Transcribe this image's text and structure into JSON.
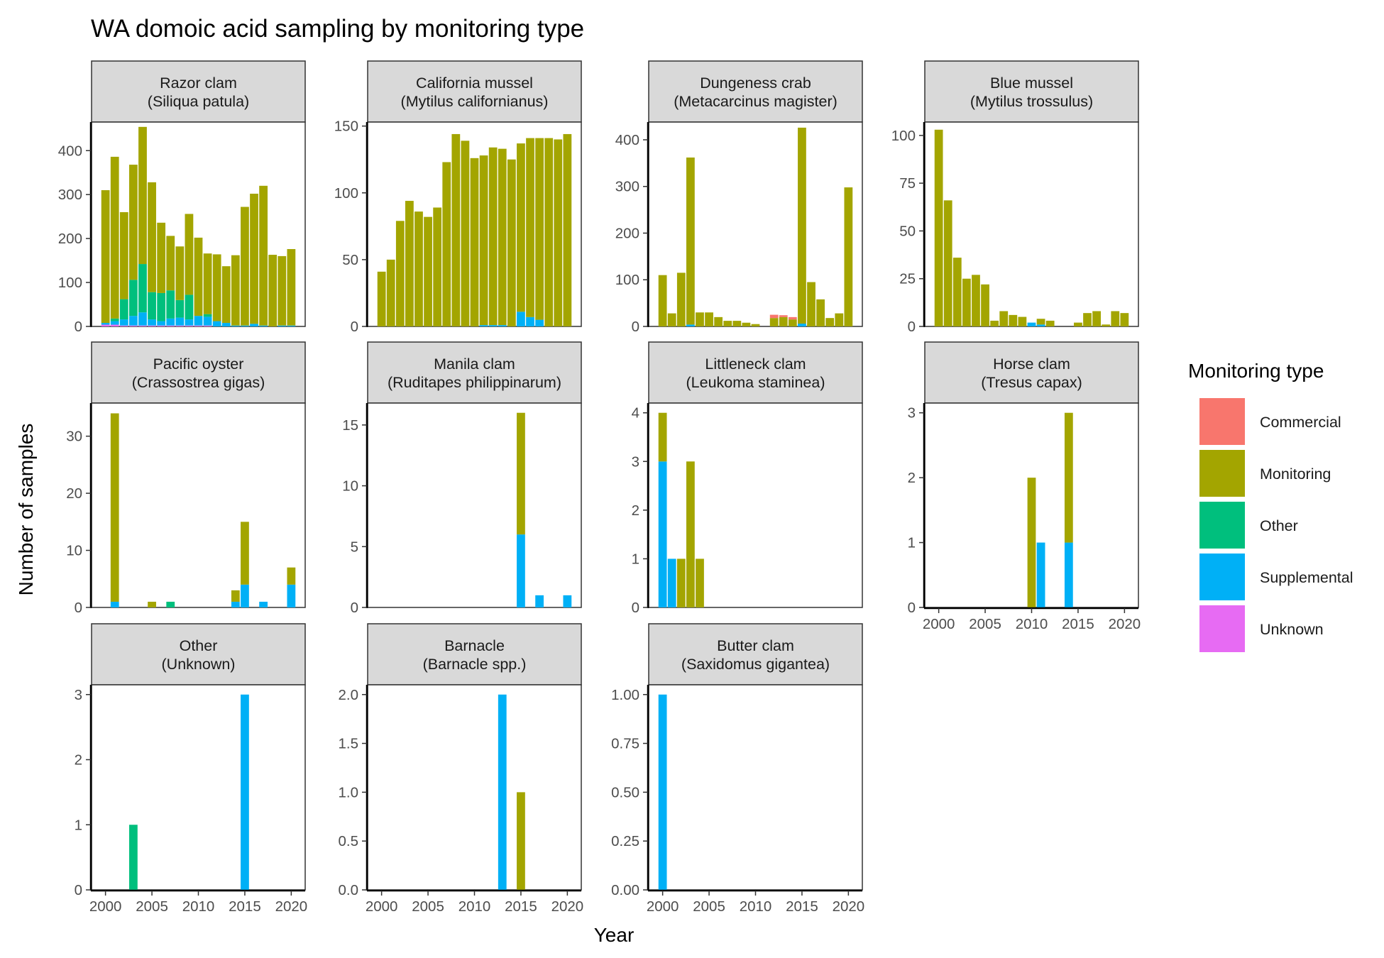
{
  "chart_data": {
    "type": "bar",
    "title": "WA domoic acid sampling by monitoring type",
    "xlabel": "Year",
    "ylabel": "Number of samples",
    "stacked": true,
    "grid": false,
    "legend": {
      "title": "Monitoring type",
      "position": "right",
      "items": [
        {
          "name": "Commercial",
          "color": "#F8766D"
        },
        {
          "name": "Monitoring",
          "color": "#A3A500"
        },
        {
          "name": "Other",
          "color": "#00BF7D"
        },
        {
          "name": "Supplemental",
          "color": "#00B0F6"
        },
        {
          "name": "Unknown",
          "color": "#E76BF3"
        }
      ]
    },
    "x_ticks": [
      2000,
      2005,
      2010,
      2015,
      2020
    ],
    "xlim": [
      1998.5,
      2021.5
    ],
    "panels": [
      {
        "label_line1": "Razor clam",
        "label_line2": "(Siliqua patula)",
        "ylim": [
          0,
          465
        ],
        "y_ticks": [
          "0",
          "100",
          "200",
          "300",
          "400"
        ],
        "y_tick_values": [
          0,
          100,
          200,
          300,
          400
        ],
        "show_x_axis": false,
        "years": [
          2000,
          2001,
          2002,
          2003,
          2004,
          2005,
          2006,
          2007,
          2008,
          2009,
          2010,
          2011,
          2012,
          2013,
          2014,
          2015,
          2016,
          2017,
          2018,
          2019,
          2020
        ],
        "series": {
          "Unknown": [
            4,
            4,
            2,
            2,
            2,
            2,
            2,
            2,
            2,
            2,
            2,
            2,
            0,
            0,
            0,
            0,
            0,
            0,
            0,
            0,
            0
          ],
          "Supplemental": [
            4,
            8,
            14,
            22,
            30,
            14,
            10,
            16,
            18,
            14,
            22,
            20,
            12,
            8,
            2,
            2,
            6,
            2,
            0,
            2,
            2
          ],
          "Other": [
            0,
            6,
            46,
            82,
            110,
            62,
            64,
            64,
            40,
            56,
            0,
            6,
            0,
            0,
            0,
            0,
            0,
            0,
            0,
            0,
            0
          ],
          "Monitoring": [
            302,
            368,
            198,
            262,
            312,
            250,
            160,
            124,
            122,
            184,
            178,
            138,
            152,
            129,
            160,
            270,
            296,
            318,
            163,
            158,
            174
          ],
          "Commercial": [
            0,
            0,
            0,
            0,
            0,
            0,
            0,
            0,
            0,
            0,
            0,
            0,
            0,
            0,
            0,
            0,
            0,
            0,
            0,
            0,
            0
          ]
        }
      },
      {
        "label_line1": "California mussel",
        "label_line2": "(Mytilus californianus)",
        "ylim": [
          0,
          153
        ],
        "y_ticks": [
          "0",
          "50",
          "100",
          "150"
        ],
        "y_tick_values": [
          0,
          50,
          100,
          150
        ],
        "show_x_axis": false,
        "years": [
          2000,
          2001,
          2002,
          2003,
          2004,
          2005,
          2006,
          2007,
          2008,
          2009,
          2010,
          2011,
          2012,
          2013,
          2014,
          2015,
          2016,
          2017,
          2018,
          2019,
          2020
        ],
        "series": {
          "Supplemental": [
            0,
            0,
            0,
            0,
            0,
            0,
            0,
            0,
            0,
            0,
            0,
            1,
            1,
            1,
            0,
            11,
            7,
            5,
            0,
            0,
            0
          ],
          "Monitoring": [
            41,
            50,
            79,
            94,
            86,
            82,
            89,
            123,
            144,
            139,
            126,
            127,
            133,
            132,
            125,
            126,
            134,
            136,
            141,
            140,
            144
          ],
          "Commercial": [
            0,
            0,
            0,
            0,
            0,
            0,
            0,
            0,
            0,
            0,
            0,
            0,
            0,
            0,
            0,
            0,
            0,
            0,
            0,
            0,
            0
          ],
          "Other": [
            0,
            0,
            0,
            0,
            0,
            0,
            0,
            0,
            0,
            0,
            0,
            0,
            0,
            0,
            0,
            0,
            0,
            0,
            0,
            0,
            0
          ],
          "Unknown": [
            0,
            0,
            0,
            0,
            0,
            0,
            0,
            0,
            0,
            0,
            0,
            0,
            0,
            0,
            0,
            0,
            0,
            0,
            0,
            0,
            0
          ]
        }
      },
      {
        "label_line1": "Dungeness crab",
        "label_line2": "(Metacarcinus magister)",
        "ylim": [
          0,
          438
        ],
        "y_ticks": [
          "0",
          "100",
          "200",
          "300",
          "400"
        ],
        "y_tick_values": [
          0,
          100,
          200,
          300,
          400
        ],
        "show_x_axis": false,
        "years": [
          2000,
          2001,
          2002,
          2003,
          2004,
          2005,
          2006,
          2007,
          2008,
          2009,
          2010,
          2011,
          2012,
          2013,
          2014,
          2015,
          2016,
          2017,
          2018,
          2019,
          2020
        ],
        "series": {
          "Supplemental": [
            0,
            0,
            0,
            4,
            0,
            0,
            0,
            0,
            0,
            0,
            0,
            0,
            0,
            0,
            0,
            6,
            0,
            0,
            0,
            0,
            0
          ],
          "Monitoring": [
            110,
            28,
            115,
            358,
            30,
            30,
            20,
            12,
            12,
            8,
            5,
            0,
            18,
            20,
            15,
            420,
            95,
            58,
            18,
            28,
            298
          ],
          "Commercial": [
            0,
            0,
            0,
            0,
            0,
            0,
            0,
            0,
            0,
            0,
            0,
            0,
            7,
            4,
            5,
            0,
            0,
            0,
            0,
            0,
            0
          ],
          "Other": [
            0,
            0,
            0,
            0,
            0,
            0,
            0,
            0,
            0,
            0,
            0,
            0,
            0,
            0,
            0,
            0,
            0,
            0,
            0,
            0,
            0
          ],
          "Unknown": [
            0,
            0,
            0,
            0,
            0,
            0,
            0,
            0,
            0,
            0,
            0,
            0,
            0,
            0,
            0,
            0,
            0,
            0,
            0,
            0,
            0
          ]
        }
      },
      {
        "label_line1": "Blue mussel",
        "label_line2": "(Mytilus trossulus)",
        "ylim": [
          0,
          107
        ],
        "y_ticks": [
          "0",
          "25",
          "50",
          "75",
          "100"
        ],
        "y_tick_values": [
          0,
          25,
          50,
          75,
          100
        ],
        "show_x_axis": false,
        "years": [
          2000,
          2001,
          2002,
          2003,
          2004,
          2005,
          2006,
          2007,
          2008,
          2009,
          2010,
          2011,
          2012,
          2013,
          2014,
          2015,
          2016,
          2017,
          2018,
          2019,
          2020
        ],
        "series": {
          "Supplemental": [
            0,
            0,
            0,
            0,
            0,
            0,
            0,
            0,
            0,
            0,
            2,
            1,
            0,
            0,
            0,
            0,
            0,
            0,
            0,
            0,
            0
          ],
          "Monitoring": [
            103,
            66,
            36,
            25,
            27,
            22,
            3,
            8,
            6,
            5,
            0,
            3,
            3,
            0,
            0,
            2,
            7,
            8,
            1,
            8,
            7
          ],
          "Commercial": [
            0,
            0,
            0,
            0,
            0,
            0,
            0,
            0,
            0,
            0,
            0,
            0,
            0,
            0,
            0,
            0,
            0,
            0,
            0,
            0,
            0
          ],
          "Other": [
            0,
            0,
            0,
            0,
            0,
            0,
            0,
            0,
            0,
            0,
            0,
            0,
            0,
            0,
            0,
            0,
            0,
            0,
            0,
            0,
            0
          ],
          "Unknown": [
            0,
            0,
            0,
            0,
            0,
            0,
            0,
            0,
            0,
            0,
            0,
            0,
            0,
            0,
            0,
            0,
            0,
            0,
            0,
            0,
            0
          ]
        }
      },
      {
        "label_line1": "Pacific oyster",
        "label_line2": "(Crassostrea gigas)",
        "ylim": [
          0,
          35.8
        ],
        "y_ticks": [
          "0",
          "10",
          "20",
          "30"
        ],
        "y_tick_values": [
          0,
          10,
          20,
          30
        ],
        "show_x_axis": false,
        "years": [
          2001,
          2005,
          2007,
          2014,
          2015,
          2017,
          2020
        ],
        "series": {
          "Supplemental": [
            1,
            0,
            0,
            1,
            4,
            1,
            4
          ],
          "Other": [
            0,
            0,
            1,
            0,
            0,
            0,
            0
          ],
          "Monitoring": [
            33,
            1,
            0,
            2,
            11,
            0,
            3
          ],
          "Commercial": [
            0,
            0,
            0,
            0,
            0,
            0,
            0
          ],
          "Unknown": [
            0,
            0,
            0,
            0,
            0,
            0,
            0
          ]
        }
      },
      {
        "label_line1": "Manila clam",
        "label_line2": "(Ruditapes philippinarum)",
        "ylim": [
          0,
          16.8
        ],
        "y_ticks": [
          "0",
          "5",
          "10",
          "15"
        ],
        "y_tick_values": [
          0,
          5,
          10,
          15
        ],
        "show_x_axis": false,
        "years": [
          2015,
          2017,
          2020
        ],
        "series": {
          "Supplemental": [
            6,
            1,
            1
          ],
          "Monitoring": [
            10,
            0,
            0
          ],
          "Commercial": [
            0,
            0,
            0
          ],
          "Other": [
            0,
            0,
            0
          ],
          "Unknown": [
            0,
            0,
            0
          ]
        }
      },
      {
        "label_line1": "Littleneck clam",
        "label_line2": "(Leukoma staminea)",
        "ylim": [
          0,
          4.2
        ],
        "y_ticks": [
          "0",
          "1",
          "2",
          "3",
          "4"
        ],
        "y_tick_values": [
          0,
          1,
          2,
          3,
          4
        ],
        "show_x_axis": false,
        "years": [
          2000,
          2001,
          2002,
          2003,
          2004
        ],
        "series": {
          "Supplemental": [
            3,
            1,
            0,
            0,
            0
          ],
          "Monitoring": [
            1,
            0,
            1,
            3,
            1
          ],
          "Commercial": [
            0,
            0,
            0,
            0,
            0
          ],
          "Other": [
            0,
            0,
            0,
            0,
            0
          ],
          "Unknown": [
            0,
            0,
            0,
            0,
            0
          ]
        }
      },
      {
        "label_line1": "Horse clam",
        "label_line2": "(Tresus capax)",
        "ylim": [
          0,
          3.15
        ],
        "y_ticks": [
          "0",
          "1",
          "2",
          "3"
        ],
        "y_tick_values": [
          0,
          1,
          2,
          3
        ],
        "show_x_axis": true,
        "years": [
          2010,
          2011,
          2014
        ],
        "series": {
          "Supplemental": [
            0,
            1,
            1
          ],
          "Monitoring": [
            2,
            0,
            2
          ],
          "Commercial": [
            0,
            0,
            0
          ],
          "Other": [
            0,
            0,
            0
          ],
          "Unknown": [
            0,
            0,
            0
          ]
        }
      },
      {
        "label_line1": "Other",
        "label_line2": "(Unknown)",
        "ylim": [
          0,
          3.15
        ],
        "y_ticks": [
          "0",
          "1",
          "2",
          "3"
        ],
        "y_tick_values": [
          0,
          1,
          2,
          3
        ],
        "show_x_axis": true,
        "years": [
          2003,
          2015
        ],
        "series": {
          "Other": [
            1,
            0
          ],
          "Supplemental": [
            0,
            3
          ],
          "Monitoring": [
            0,
            0
          ],
          "Commercial": [
            0,
            0
          ],
          "Unknown": [
            0,
            0
          ]
        }
      },
      {
        "label_line1": "Barnacle",
        "label_line2": "(Barnacle spp.)",
        "ylim": [
          0,
          2.1
        ],
        "y_ticks": [
          "0.0",
          "0.5",
          "1.0",
          "1.5",
          "2.0"
        ],
        "y_tick_values": [
          0,
          0.5,
          1,
          1.5,
          2
        ],
        "show_x_axis": true,
        "years": [
          2013,
          2015
        ],
        "series": {
          "Supplemental": [
            2,
            0
          ],
          "Monitoring": [
            0,
            1
          ],
          "Commercial": [
            0,
            0
          ],
          "Other": [
            0,
            0
          ],
          "Unknown": [
            0,
            0
          ]
        }
      },
      {
        "label_line1": "Butter clam",
        "label_line2": "(Saxidomus gigantea)",
        "ylim": [
          0,
          1.05
        ],
        "y_ticks": [
          "0.00",
          "0.25",
          "0.50",
          "0.75",
          "1.00"
        ],
        "y_tick_values": [
          0,
          0.25,
          0.5,
          0.75,
          1
        ],
        "show_x_axis": true,
        "years": [
          2000
        ],
        "series": {
          "Supplemental": [
            1
          ],
          "Monitoring": [
            0
          ],
          "Commercial": [
            0
          ],
          "Other": [
            0
          ],
          "Unknown": [
            0
          ]
        }
      }
    ]
  }
}
